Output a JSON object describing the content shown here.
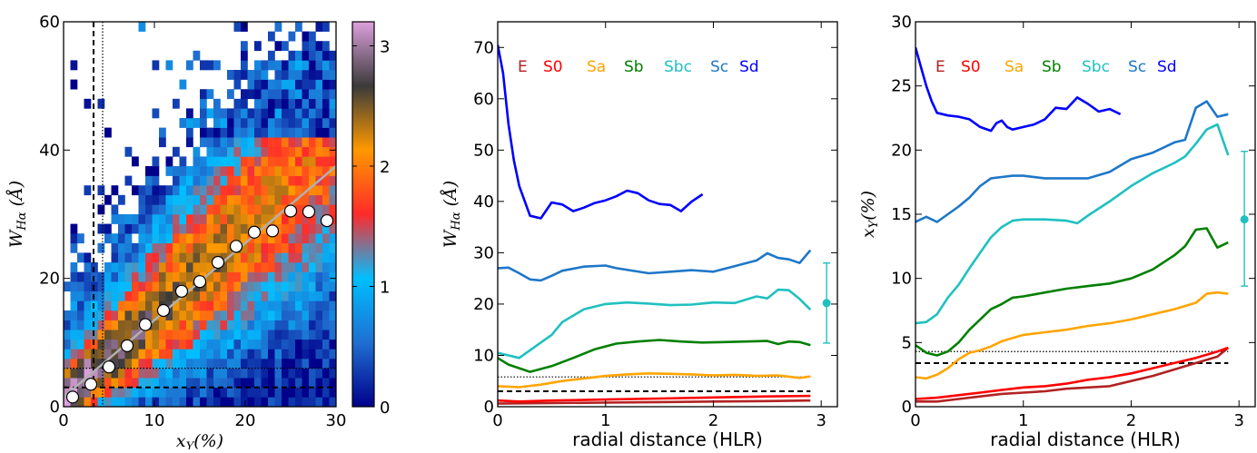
{
  "chart_data": [
    {
      "type": "heatmap",
      "xlabel": "x_Y(%)",
      "ylabel": "W_Hα (Å)",
      "xlim": [
        0,
        30
      ],
      "ylim": [
        0,
        60
      ],
      "xticks": [
        "0",
        "10",
        "20",
        "30"
      ],
      "yticks": [
        "0",
        "20",
        "40",
        "60"
      ],
      "colorbar": {
        "min": 0,
        "max": 3.2,
        "ticks": [
          "0",
          "1",
          "2",
          "3"
        ],
        "colors": [
          "#00008b",
          "#1f6fd0",
          "#00bfff",
          "#ff2a2a",
          "#ff9900",
          "#3a3a3a",
          "#dda0dd"
        ]
      },
      "binned_medians": {
        "x": [
          1.0,
          3.0,
          5.0,
          7.0,
          9.0,
          11.0,
          13.0,
          15.0,
          17.0,
          19.0,
          21.0,
          23.0,
          25.0,
          27.0,
          29.0
        ],
        "y": [
          1.5,
          3.5,
          6.2,
          9.5,
          12.8,
          15.0,
          18.0,
          19.5,
          22.5,
          25.0,
          27.2,
          27.4,
          30.5,
          30.4,
          29.0
        ]
      },
      "fit_line": {
        "x": [
          0,
          30
        ],
        "y": [
          1.5,
          37.5
        ]
      },
      "dashed_vertical_x": 3.3,
      "dotted_vertical_x": 4.3,
      "dashed_horizontal_y": 3.0,
      "dotted_horizontal_y": 6.0
    },
    {
      "type": "line",
      "xlabel": "radial distance (HLR)",
      "ylabel": "W_Hα (Å)",
      "xlim": [
        0,
        3.15
      ],
      "ylim": [
        0,
        75
      ],
      "xticks": [
        "0",
        "1",
        "2",
        "3"
      ],
      "yticks": [
        "0",
        "10",
        "20",
        "30",
        "40",
        "50",
        "60",
        "70"
      ],
      "legend": [
        "E",
        "S0",
        "Sa",
        "Sb",
        "Sbc",
        "Sc",
        "Sd"
      ],
      "legend_placement": "top",
      "series": [
        {
          "name": "E",
          "color": "#b22222",
          "x": [
            0,
            0.5,
            1.0,
            1.5,
            2.0,
            2.5,
            2.9
          ],
          "y": [
            0.6,
            0.7,
            0.8,
            0.9,
            1.0,
            1.1,
            1.2
          ]
        },
        {
          "name": "S0",
          "color": "#ff0000",
          "x": [
            0,
            0.2,
            0.5,
            1.0,
            1.5,
            2.0,
            2.5,
            2.9
          ],
          "y": [
            1.2,
            1.0,
            1.2,
            1.4,
            1.6,
            1.8,
            2.0,
            2.1
          ]
        },
        {
          "name": "Sa",
          "color": "#ffa500",
          "x": [
            0,
            0.2,
            0.4,
            0.6,
            0.8,
            1.0,
            1.2,
            1.4,
            1.6,
            1.8,
            2.0,
            2.2,
            2.4,
            2.6,
            2.8,
            2.9
          ],
          "y": [
            4.0,
            3.8,
            4.3,
            5.0,
            5.5,
            6.0,
            6.3,
            6.5,
            6.4,
            6.3,
            6.1,
            6.2,
            6.0,
            6.1,
            5.6,
            5.9
          ]
        },
        {
          "name": "Sb",
          "color": "#008000",
          "x": [
            0,
            0.1,
            0.3,
            0.5,
            0.7,
            0.9,
            1.1,
            1.3,
            1.5,
            1.7,
            1.9,
            2.1,
            2.3,
            2.5,
            2.6,
            2.7,
            2.8,
            2.9
          ],
          "y": [
            9.5,
            8.2,
            6.8,
            7.9,
            9.5,
            11.2,
            12.3,
            12.7,
            13.0,
            12.7,
            12.5,
            12.6,
            12.7,
            12.8,
            12.2,
            12.7,
            12.6,
            12.0
          ]
        },
        {
          "name": "Sbc",
          "color": "#20c0c0",
          "x": [
            0,
            0.1,
            0.2,
            0.3,
            0.4,
            0.5,
            0.6,
            0.8,
            1.0,
            1.2,
            1.4,
            1.6,
            1.8,
            2.0,
            2.2,
            2.4,
            2.5,
            2.6,
            2.7,
            2.8,
            2.9
          ],
          "y": [
            10.5,
            10.0,
            9.5,
            11.0,
            12.5,
            14.0,
            16.5,
            19.0,
            20.0,
            20.3,
            20.1,
            19.8,
            19.9,
            20.3,
            20.2,
            21.5,
            21.1,
            22.8,
            22.7,
            21.0,
            18.9
          ]
        },
        {
          "name": "Sc",
          "color": "#1e77c8",
          "x": [
            0,
            0.1,
            0.2,
            0.3,
            0.4,
            0.5,
            0.6,
            0.8,
            1.0,
            1.1,
            1.4,
            1.6,
            1.8,
            2.0,
            2.2,
            2.4,
            2.5,
            2.6,
            2.7,
            2.8,
            2.9
          ],
          "y": [
            27.0,
            27.1,
            26.0,
            24.8,
            24.6,
            25.5,
            26.5,
            27.3,
            27.5,
            27.0,
            26.0,
            26.3,
            26.6,
            26.3,
            27.4,
            28.5,
            29.9,
            29.0,
            28.7,
            28.0,
            30.5
          ]
        },
        {
          "name": "Sd",
          "color": "#0000ff",
          "x": [
            0,
            0.05,
            0.1,
            0.15,
            0.2,
            0.3,
            0.4,
            0.5,
            0.6,
            0.7,
            0.8,
            0.9,
            1.0,
            1.1,
            1.2,
            1.3,
            1.4,
            1.5,
            1.6,
            1.7,
            1.8,
            1.9
          ],
          "y": [
            70.5,
            65,
            55,
            48,
            43,
            37.2,
            36.7,
            39.8,
            39.4,
            38.1,
            38.8,
            39.7,
            40.2,
            41.0,
            42.1,
            41.6,
            40.2,
            39.5,
            39.3,
            38.1,
            40.0,
            41.4
          ]
        }
      ],
      "error_bar": {
        "x": 3.05,
        "y": 20.2,
        "low": 12.4,
        "high": 28.0,
        "color": "#20c0c0"
      },
      "dashed_horizontal_y": 3.0,
      "dotted_horizontal_y": 5.8
    },
    {
      "type": "line",
      "xlabel": "radial distance (HLR)",
      "ylabel": "x_Y(%)",
      "xlim": [
        0,
        3.15
      ],
      "ylim": [
        0,
        30
      ],
      "xticks": [
        "0",
        "1",
        "2",
        "3"
      ],
      "yticks": [
        "0",
        "5",
        "10",
        "15",
        "20",
        "25",
        "30"
      ],
      "legend": [
        "E",
        "S0",
        "Sa",
        "Sb",
        "Sbc",
        "Sc",
        "Sd"
      ],
      "legend_placement": "top",
      "series": [
        {
          "name": "E",
          "color": "#b22222",
          "x": [
            0,
            0.2,
            0.4,
            0.6,
            0.8,
            1.0,
            1.2,
            1.4,
            1.6,
            1.8,
            2.0,
            2.2,
            2.4,
            2.6,
            2.8,
            2.9
          ],
          "y": [
            0.4,
            0.4,
            0.6,
            0.8,
            1.0,
            1.1,
            1.2,
            1.4,
            1.5,
            1.6,
            2.0,
            2.4,
            2.9,
            3.4,
            3.9,
            4.6
          ]
        },
        {
          "name": "S0",
          "color": "#ff0000",
          "x": [
            0,
            0.2,
            0.4,
            0.6,
            0.8,
            1.0,
            1.2,
            1.4,
            1.6,
            1.8,
            2.0,
            2.2,
            2.4,
            2.6,
            2.8,
            2.9
          ],
          "y": [
            0.6,
            0.7,
            0.9,
            1.1,
            1.3,
            1.5,
            1.6,
            1.8,
            2.1,
            2.3,
            2.6,
            3.0,
            3.4,
            3.8,
            4.3,
            4.6
          ]
        },
        {
          "name": "Sa",
          "color": "#ffa500",
          "x": [
            0,
            0.1,
            0.2,
            0.3,
            0.4,
            0.5,
            0.6,
            0.7,
            0.8,
            1.0,
            1.2,
            1.4,
            1.6,
            1.8,
            2.0,
            2.2,
            2.4,
            2.6,
            2.7,
            2.8,
            2.9
          ],
          "y": [
            2.3,
            2.2,
            2.5,
            3.0,
            3.7,
            4.2,
            4.4,
            4.7,
            5.1,
            5.6,
            5.8,
            6.0,
            6.3,
            6.5,
            6.8,
            7.2,
            7.6,
            8.1,
            8.8,
            8.9,
            8.8
          ]
        },
        {
          "name": "Sb",
          "color": "#008000",
          "x": [
            0,
            0.1,
            0.2,
            0.3,
            0.4,
            0.5,
            0.6,
            0.7,
            0.8,
            0.9,
            1.0,
            1.2,
            1.4,
            1.6,
            1.8,
            2.0,
            2.2,
            2.4,
            2.5,
            2.6,
            2.7,
            2.8,
            2.9
          ],
          "y": [
            4.8,
            4.2,
            4.0,
            4.3,
            5.0,
            6.0,
            6.8,
            7.6,
            8.0,
            8.5,
            8.6,
            8.9,
            9.2,
            9.4,
            9.6,
            10.0,
            10.7,
            11.8,
            12.5,
            13.8,
            13.9,
            12.4,
            12.8
          ]
        },
        {
          "name": "Sbc",
          "color": "#20c0c0",
          "x": [
            0,
            0.1,
            0.2,
            0.3,
            0.4,
            0.5,
            0.6,
            0.7,
            0.8,
            0.9,
            1.0,
            1.2,
            1.4,
            1.5,
            1.6,
            1.8,
            2.0,
            2.2,
            2.4,
            2.5,
            2.6,
            2.7,
            2.8,
            2.9
          ],
          "y": [
            6.5,
            6.6,
            7.2,
            8.5,
            9.5,
            10.8,
            12.0,
            13.2,
            14.0,
            14.5,
            14.6,
            14.6,
            14.5,
            14.3,
            14.9,
            16.0,
            17.2,
            18.2,
            19.0,
            19.5,
            20.5,
            21.6,
            22.0,
            19.6
          ]
        },
        {
          "name": "Sc",
          "color": "#1e77c8",
          "x": [
            0,
            0.1,
            0.2,
            0.3,
            0.4,
            0.5,
            0.6,
            0.7,
            0.8,
            0.9,
            1.0,
            1.2,
            1.4,
            1.6,
            1.8,
            2.0,
            2.2,
            2.4,
            2.5,
            2.6,
            2.7,
            2.8,
            2.9
          ],
          "y": [
            14.4,
            14.8,
            14.4,
            15.0,
            15.6,
            16.3,
            17.2,
            17.8,
            17.9,
            18.0,
            18.0,
            17.8,
            17.8,
            17.8,
            18.3,
            19.3,
            19.8,
            20.6,
            20.8,
            23.3,
            23.8,
            22.6,
            22.8
          ]
        },
        {
          "name": "Sd",
          "color": "#0000ff",
          "x": [
            0,
            0.05,
            0.1,
            0.15,
            0.2,
            0.3,
            0.4,
            0.5,
            0.6,
            0.7,
            0.75,
            0.8,
            0.85,
            0.9,
            1.0,
            1.1,
            1.2,
            1.3,
            1.4,
            1.5,
            1.6,
            1.7,
            1.8,
            1.9
          ],
          "y": [
            28.0,
            26.5,
            25.0,
            23.8,
            22.9,
            22.7,
            22.6,
            22.4,
            21.8,
            21.5,
            22.1,
            22.3,
            21.8,
            21.6,
            21.8,
            22.0,
            22.4,
            23.3,
            23.2,
            24.1,
            23.6,
            23.0,
            23.2,
            22.8
          ]
        }
      ],
      "error_bar": {
        "x": 3.05,
        "y": 14.6,
        "low": 9.4,
        "high": 19.9,
        "color": "#20c0c0"
      },
      "dashed_horizontal_y": 3.4,
      "dotted_horizontal_y": 4.3
    }
  ]
}
